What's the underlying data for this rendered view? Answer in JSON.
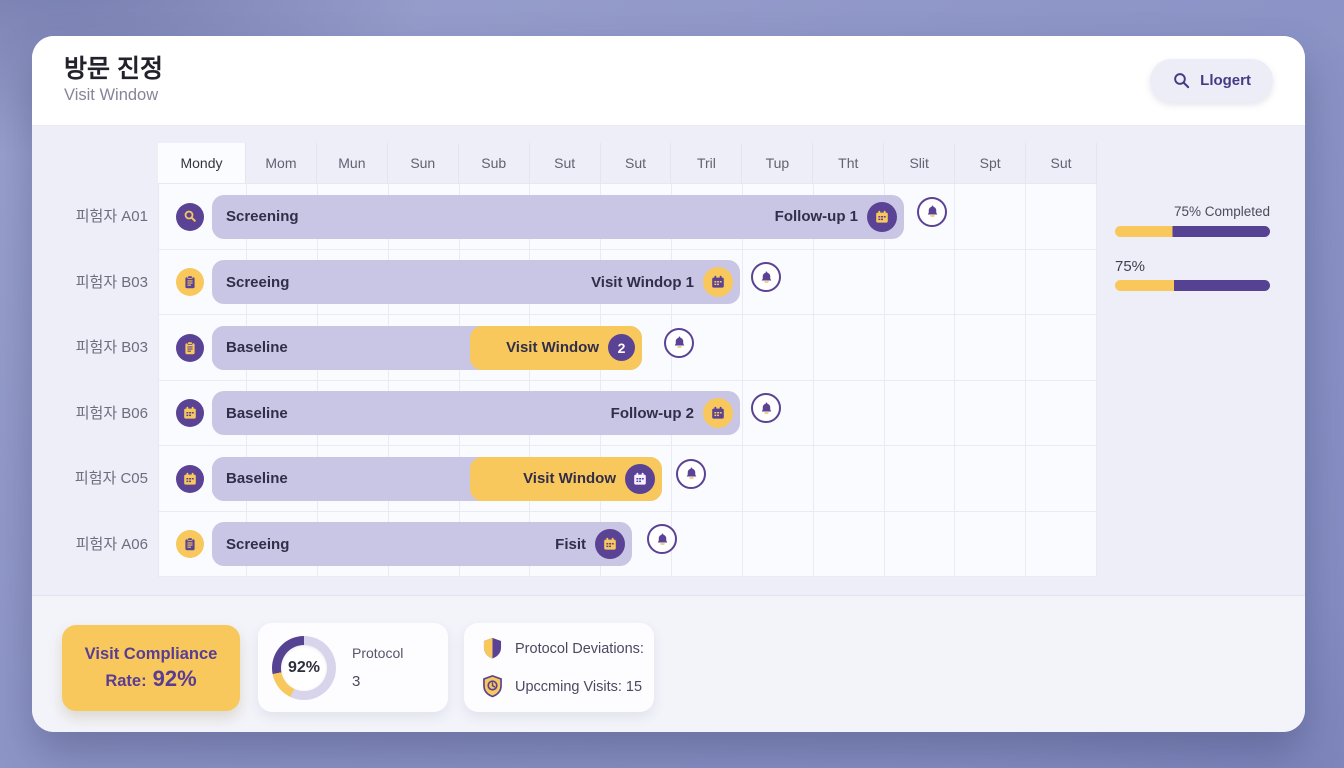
{
  "header": {
    "title": "방문 진정",
    "subtitle": "Visit Window",
    "search_button": "Llogert"
  },
  "timeline": {
    "columns": [
      "Mondy",
      "Mom",
      "Mun",
      "Sun",
      "Sub",
      "Sut",
      "Sut",
      "Tril",
      "Tup",
      "Tht",
      "Slit",
      "Spt",
      "Sut"
    ],
    "rows": [
      {
        "subject": "피험자 A01",
        "phase": "Screening",
        "event": "Follow-up 1",
        "lead_icon": "search-icon",
        "event_icon": "calendar-icon"
      },
      {
        "subject": "피험자 B03",
        "phase": "Screeing",
        "event": "Visit Windop 1",
        "lead_icon": "clipboard-icon",
        "event_icon": "calendar-icon"
      },
      {
        "subject": "피험자 B03",
        "phase": "Baseline",
        "event": "Visit Window",
        "badge": "2",
        "lead_icon": "clipboard-icon"
      },
      {
        "subject": "피험자 B06",
        "phase": "Baseline",
        "event": "Follow-up 2",
        "lead_icon": "calendar-icon",
        "event_icon": "calendar-icon"
      },
      {
        "subject": "피험자 C05",
        "phase": "Baseline",
        "event": "Visit Window",
        "lead_icon": "calendar-icon",
        "event_icon": "calendar-icon"
      },
      {
        "subject": "피험자 A06",
        "phase": "Screeing",
        "event": "Fisit",
        "lead_icon": "clipboard-icon",
        "event_icon": "calendar-icon"
      }
    ]
  },
  "progress": {
    "completed_label": "75% Completed",
    "percent_label": "75%"
  },
  "cards": {
    "compliance": {
      "line1": "Visit Compliance",
      "line2_prefix": "Rate:",
      "line2_value": "92%"
    },
    "protocol": {
      "donut_value": "92%",
      "label": "Protocol",
      "count": "3"
    },
    "stats": {
      "deviations": "Protocol Deviations:",
      "upcoming": "Upccming Visits: 15"
    }
  },
  "colors": {
    "accent_purple": "#5a4294",
    "accent_yellow": "#f8c85c",
    "bar_lavender": "#c9c5e5",
    "progress_purple": "#564293"
  }
}
